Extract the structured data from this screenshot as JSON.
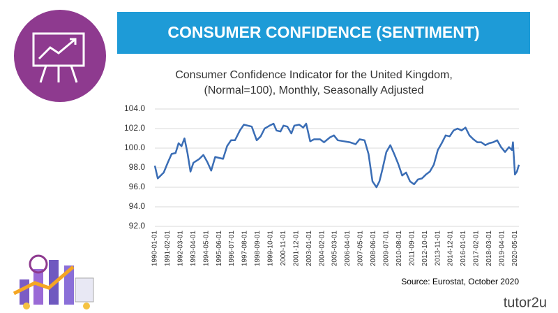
{
  "header": {
    "title": "CONSUMER CONFIDENCE (SENTIMENT)"
  },
  "chart_data": {
    "type": "line",
    "title": "Consumer Confidence Indicator for the United Kingdom,",
    "subtitle": "(Normal=100), Monthly, Seasonally Adjusted",
    "color": "#3a6db5",
    "x": [
      "1990-01-01",
      "1990-04-01",
      "1990-10-01",
      "1991-02-01",
      "1991-06-01",
      "1991-10-01",
      "1992-01-01",
      "1992-04-01",
      "1992-07-01",
      "1992-10-01",
      "1993-01-01",
      "1993-04-01",
      "1993-10-01",
      "1994-02-01",
      "1994-06-01",
      "1994-10-01",
      "1995-02-01",
      "1995-06-01",
      "1995-10-01",
      "1996-02-01",
      "1996-06-01",
      "1996-10-01",
      "1997-03-01",
      "1997-07-01",
      "1997-11-01",
      "1998-03-01",
      "1998-08-01",
      "1998-12-01",
      "1999-04-01",
      "1999-09-01",
      "2000-01-01",
      "2000-04-01",
      "2000-08-01",
      "2000-11-01",
      "2001-03-01",
      "2001-07-01",
      "2001-10-01",
      "2002-03-01",
      "2002-07-01",
      "2002-10-01",
      "2003-02-01",
      "2003-06-01",
      "2003-12-01",
      "2004-04-01",
      "2004-10-01",
      "2005-02-01",
      "2005-06-01",
      "2005-12-01",
      "2006-06-01",
      "2006-12-01",
      "2007-04-01",
      "2007-09-01",
      "2008-01-01",
      "2008-05-01",
      "2008-09-01",
      "2008-12-01",
      "2009-03-01",
      "2009-07-01",
      "2009-11-01",
      "2010-03-01",
      "2010-07-01",
      "2010-11-01",
      "2011-03-01",
      "2011-07-01",
      "2011-11-01",
      "2012-03-01",
      "2012-07-01",
      "2012-11-01",
      "2013-03-01",
      "2013-07-01",
      "2013-11-01",
      "2014-03-01",
      "2014-07-01",
      "2014-11-01",
      "2015-03-01",
      "2015-07-01",
      "2015-11-01",
      "2016-03-01",
      "2016-07-01",
      "2016-11-01",
      "2017-03-01",
      "2017-07-01",
      "2017-11-01",
      "2018-03-01",
      "2018-07-01",
      "2018-11-01",
      "2019-03-01",
      "2019-07-01",
      "2019-11-01",
      "2020-02-01",
      "2020-03-01",
      "2020-05-01",
      "2020-07-01",
      "2020-09-01"
    ],
    "values": [
      98.2,
      96.9,
      97.5,
      98.5,
      99.4,
      99.5,
      100.5,
      100.2,
      101.0,
      99.5,
      97.6,
      98.5,
      98.9,
      99.3,
      98.6,
      97.7,
      99.1,
      99.0,
      98.9,
      100.2,
      100.8,
      100.8,
      101.8,
      102.4,
      102.3,
      102.2,
      100.8,
      101.2,
      102.0,
      102.3,
      102.5,
      101.8,
      101.7,
      102.3,
      102.2,
      101.5,
      102.3,
      102.4,
      102.1,
      102.5,
      100.7,
      100.9,
      100.9,
      100.6,
      101.1,
      101.3,
      100.8,
      100.7,
      100.6,
      100.4,
      100.9,
      100.8,
      99.4,
      96.6,
      96.0,
      96.6,
      97.8,
      99.6,
      100.3,
      99.4,
      98.4,
      97.2,
      97.5,
      96.6,
      96.3,
      96.8,
      96.9,
      97.3,
      97.6,
      98.3,
      99.8,
      100.5,
      101.3,
      101.2,
      101.8,
      102.0,
      101.8,
      102.1,
      101.3,
      100.9,
      100.6,
      100.6,
      100.3,
      100.5,
      100.6,
      100.8,
      100.1,
      99.6,
      100.1,
      99.8,
      100.6,
      97.3,
      97.6,
      98.3
    ],
    "xlim": [
      "1990-01-01",
      "2020-09-01"
    ],
    "xticks": [
      "1990-01-01",
      "1991-02-01",
      "1992-03-01",
      "1993-04-01",
      "1994-05-01",
      "1995-06-01",
      "1996-07-01",
      "1997-08-01",
      "1998-09-01",
      "1999-10-01",
      "2000-11-01",
      "2001-12-01",
      "2003-01-01",
      "2004-02-01",
      "2005-03-01",
      "2006-04-01",
      "2007-05-01",
      "2008-06-01",
      "2009-07-01",
      "2010-08-01",
      "2011-09-01",
      "2012-10-01",
      "2013-11-01",
      "2014-12-01",
      "2016-01-01",
      "2017-02-01",
      "2018-03-01",
      "2019-04-01",
      "2020-05-01"
    ],
    "ylim": [
      92,
      104
    ],
    "yticks": [
      {
        "value": 92,
        "label": "92.0"
      },
      {
        "value": 94,
        "label": "94.0"
      },
      {
        "value": 96,
        "label": "96.0"
      },
      {
        "value": 98,
        "label": "98.0"
      },
      {
        "value": 100,
        "label": "100.0"
      },
      {
        "value": 102,
        "label": "102.0"
      },
      {
        "value": 104,
        "label": "104.0"
      }
    ],
    "grid": true
  },
  "footer": {
    "source": "Source: Eurostat, October 2020",
    "logo": "tutor2u"
  }
}
